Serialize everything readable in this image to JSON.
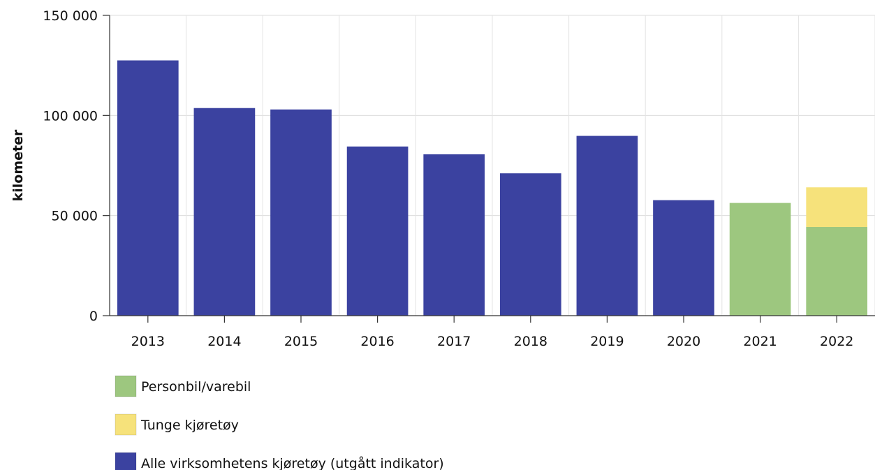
{
  "chart_data": {
    "type": "bar",
    "stacked": true,
    "categories": [
      "2013",
      "2014",
      "2015",
      "2016",
      "2017",
      "2018",
      "2019",
      "2020",
      "2021",
      "2022"
    ],
    "series": [
      {
        "name": "Alle virksomhetens kjøretøy (utgått indikator)",
        "color": "#3B42A0",
        "values": [
          127500,
          103700,
          103000,
          84500,
          80600,
          71100,
          89800,
          57700,
          null,
          null
        ]
      },
      {
        "name": "Personbil/varebil",
        "color": "#9DC77F",
        "values": [
          null,
          null,
          null,
          null,
          null,
          null,
          null,
          null,
          56300,
          44300
        ]
      },
      {
        "name": "Tunge kjøretøy",
        "color": "#F6E27B",
        "values": [
          null,
          null,
          null,
          null,
          null,
          null,
          null,
          null,
          null,
          19800
        ]
      }
    ],
    "legend_order": [
      1,
      2,
      0
    ],
    "ylabel": "kilometer",
    "xlabel": "",
    "ylim": [
      0,
      150000
    ],
    "yticks": [
      0,
      50000,
      100000,
      150000
    ],
    "ytick_labels": [
      "0",
      "50 000",
      "100 000",
      "150 000"
    ],
    "grid": true,
    "legend_position": "bottom-left"
  }
}
